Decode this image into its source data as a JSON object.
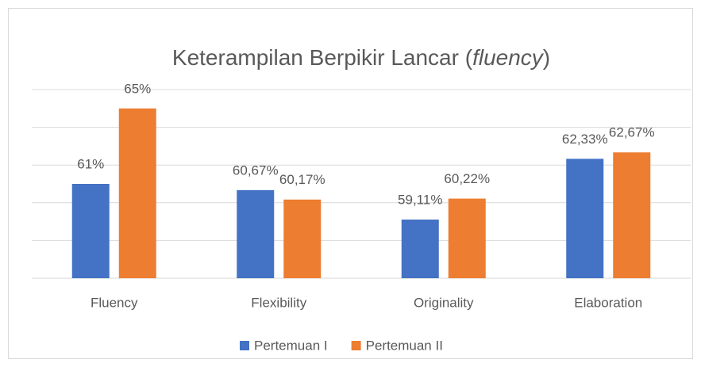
{
  "chart_data": {
    "type": "bar",
    "title": "Keterampilan Berpikir Lancar (fluency)",
    "categories": [
      "Fluency",
      "Flexibility",
      "Originality",
      "Elaboration"
    ],
    "series": [
      {
        "name": "Pertemuan I",
        "color": "#4472c4",
        "values": [
          61,
          60.67,
          59.11,
          62.33
        ],
        "value_labels": [
          "61%",
          "60,67%",
          "59,11%",
          "62,33%"
        ]
      },
      {
        "name": "Pertemuan II",
        "color": "#ed7d31",
        "values": [
          65,
          60.17,
          60.22,
          62.67
        ],
        "value_labels": [
          "65%",
          "60,17%",
          "60,22%",
          "62,67%"
        ]
      }
    ],
    "ylim": [
      56,
      66
    ],
    "yticks": [
      56,
      58,
      60,
      62,
      64,
      66
    ],
    "grid": true,
    "legend": "bottom"
  }
}
